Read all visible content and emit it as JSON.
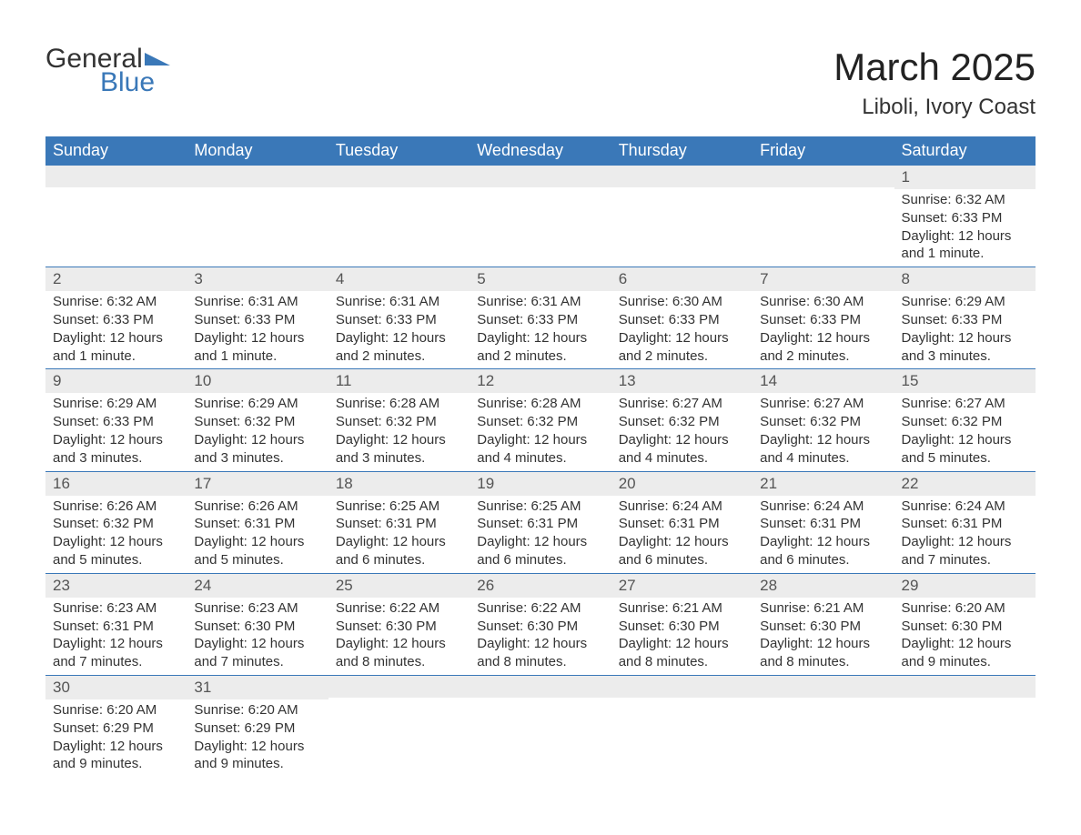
{
  "brand": {
    "word1": "General",
    "word2": "Blue",
    "accent_color": "#3a78b8",
    "text_color": "#333333"
  },
  "title": "March 2025",
  "location": "Liboli, Ivory Coast",
  "colors": {
    "header_bg": "#3a78b8",
    "header_text": "#ffffff",
    "daynum_bg": "#ececec",
    "daynum_text": "#555555",
    "body_text": "#333333",
    "cell_border": "#3a78b8",
    "page_bg": "#ffffff"
  },
  "typography": {
    "title_fontsize": 42,
    "location_fontsize": 24,
    "header_fontsize": 18,
    "daynum_fontsize": 17,
    "body_fontsize": 15,
    "logo_fontsize": 30
  },
  "weekday_headers": [
    "Sunday",
    "Monday",
    "Tuesday",
    "Wednesday",
    "Thursday",
    "Friday",
    "Saturday"
  ],
  "weeks": [
    [
      {
        "day": "",
        "sunrise": "",
        "sunset": "",
        "daylight": ""
      },
      {
        "day": "",
        "sunrise": "",
        "sunset": "",
        "daylight": ""
      },
      {
        "day": "",
        "sunrise": "",
        "sunset": "",
        "daylight": ""
      },
      {
        "day": "",
        "sunrise": "",
        "sunset": "",
        "daylight": ""
      },
      {
        "day": "",
        "sunrise": "",
        "sunset": "",
        "daylight": ""
      },
      {
        "day": "",
        "sunrise": "",
        "sunset": "",
        "daylight": ""
      },
      {
        "day": "1",
        "sunrise": "Sunrise: 6:32 AM",
        "sunset": "Sunset: 6:33 PM",
        "daylight": "Daylight: 12 hours and 1 minute."
      }
    ],
    [
      {
        "day": "2",
        "sunrise": "Sunrise: 6:32 AM",
        "sunset": "Sunset: 6:33 PM",
        "daylight": "Daylight: 12 hours and 1 minute."
      },
      {
        "day": "3",
        "sunrise": "Sunrise: 6:31 AM",
        "sunset": "Sunset: 6:33 PM",
        "daylight": "Daylight: 12 hours and 1 minute."
      },
      {
        "day": "4",
        "sunrise": "Sunrise: 6:31 AM",
        "sunset": "Sunset: 6:33 PM",
        "daylight": "Daylight: 12 hours and 2 minutes."
      },
      {
        "day": "5",
        "sunrise": "Sunrise: 6:31 AM",
        "sunset": "Sunset: 6:33 PM",
        "daylight": "Daylight: 12 hours and 2 minutes."
      },
      {
        "day": "6",
        "sunrise": "Sunrise: 6:30 AM",
        "sunset": "Sunset: 6:33 PM",
        "daylight": "Daylight: 12 hours and 2 minutes."
      },
      {
        "day": "7",
        "sunrise": "Sunrise: 6:30 AM",
        "sunset": "Sunset: 6:33 PM",
        "daylight": "Daylight: 12 hours and 2 minutes."
      },
      {
        "day": "8",
        "sunrise": "Sunrise: 6:29 AM",
        "sunset": "Sunset: 6:33 PM",
        "daylight": "Daylight: 12 hours and 3 minutes."
      }
    ],
    [
      {
        "day": "9",
        "sunrise": "Sunrise: 6:29 AM",
        "sunset": "Sunset: 6:33 PM",
        "daylight": "Daylight: 12 hours and 3 minutes."
      },
      {
        "day": "10",
        "sunrise": "Sunrise: 6:29 AM",
        "sunset": "Sunset: 6:32 PM",
        "daylight": "Daylight: 12 hours and 3 minutes."
      },
      {
        "day": "11",
        "sunrise": "Sunrise: 6:28 AM",
        "sunset": "Sunset: 6:32 PM",
        "daylight": "Daylight: 12 hours and 3 minutes."
      },
      {
        "day": "12",
        "sunrise": "Sunrise: 6:28 AM",
        "sunset": "Sunset: 6:32 PM",
        "daylight": "Daylight: 12 hours and 4 minutes."
      },
      {
        "day": "13",
        "sunrise": "Sunrise: 6:27 AM",
        "sunset": "Sunset: 6:32 PM",
        "daylight": "Daylight: 12 hours and 4 minutes."
      },
      {
        "day": "14",
        "sunrise": "Sunrise: 6:27 AM",
        "sunset": "Sunset: 6:32 PM",
        "daylight": "Daylight: 12 hours and 4 minutes."
      },
      {
        "day": "15",
        "sunrise": "Sunrise: 6:27 AM",
        "sunset": "Sunset: 6:32 PM",
        "daylight": "Daylight: 12 hours and 5 minutes."
      }
    ],
    [
      {
        "day": "16",
        "sunrise": "Sunrise: 6:26 AM",
        "sunset": "Sunset: 6:32 PM",
        "daylight": "Daylight: 12 hours and 5 minutes."
      },
      {
        "day": "17",
        "sunrise": "Sunrise: 6:26 AM",
        "sunset": "Sunset: 6:31 PM",
        "daylight": "Daylight: 12 hours and 5 minutes."
      },
      {
        "day": "18",
        "sunrise": "Sunrise: 6:25 AM",
        "sunset": "Sunset: 6:31 PM",
        "daylight": "Daylight: 12 hours and 6 minutes."
      },
      {
        "day": "19",
        "sunrise": "Sunrise: 6:25 AM",
        "sunset": "Sunset: 6:31 PM",
        "daylight": "Daylight: 12 hours and 6 minutes."
      },
      {
        "day": "20",
        "sunrise": "Sunrise: 6:24 AM",
        "sunset": "Sunset: 6:31 PM",
        "daylight": "Daylight: 12 hours and 6 minutes."
      },
      {
        "day": "21",
        "sunrise": "Sunrise: 6:24 AM",
        "sunset": "Sunset: 6:31 PM",
        "daylight": "Daylight: 12 hours and 6 minutes."
      },
      {
        "day": "22",
        "sunrise": "Sunrise: 6:24 AM",
        "sunset": "Sunset: 6:31 PM",
        "daylight": "Daylight: 12 hours and 7 minutes."
      }
    ],
    [
      {
        "day": "23",
        "sunrise": "Sunrise: 6:23 AM",
        "sunset": "Sunset: 6:31 PM",
        "daylight": "Daylight: 12 hours and 7 minutes."
      },
      {
        "day": "24",
        "sunrise": "Sunrise: 6:23 AM",
        "sunset": "Sunset: 6:30 PM",
        "daylight": "Daylight: 12 hours and 7 minutes."
      },
      {
        "day": "25",
        "sunrise": "Sunrise: 6:22 AM",
        "sunset": "Sunset: 6:30 PM",
        "daylight": "Daylight: 12 hours and 8 minutes."
      },
      {
        "day": "26",
        "sunrise": "Sunrise: 6:22 AM",
        "sunset": "Sunset: 6:30 PM",
        "daylight": "Daylight: 12 hours and 8 minutes."
      },
      {
        "day": "27",
        "sunrise": "Sunrise: 6:21 AM",
        "sunset": "Sunset: 6:30 PM",
        "daylight": "Daylight: 12 hours and 8 minutes."
      },
      {
        "day": "28",
        "sunrise": "Sunrise: 6:21 AM",
        "sunset": "Sunset: 6:30 PM",
        "daylight": "Daylight: 12 hours and 8 minutes."
      },
      {
        "day": "29",
        "sunrise": "Sunrise: 6:20 AM",
        "sunset": "Sunset: 6:30 PM",
        "daylight": "Daylight: 12 hours and 9 minutes."
      }
    ],
    [
      {
        "day": "30",
        "sunrise": "Sunrise: 6:20 AM",
        "sunset": "Sunset: 6:29 PM",
        "daylight": "Daylight: 12 hours and 9 minutes."
      },
      {
        "day": "31",
        "sunrise": "Sunrise: 6:20 AM",
        "sunset": "Sunset: 6:29 PM",
        "daylight": "Daylight: 12 hours and 9 minutes."
      },
      {
        "day": "",
        "sunrise": "",
        "sunset": "",
        "daylight": ""
      },
      {
        "day": "",
        "sunrise": "",
        "sunset": "",
        "daylight": ""
      },
      {
        "day": "",
        "sunrise": "",
        "sunset": "",
        "daylight": ""
      },
      {
        "day": "",
        "sunrise": "",
        "sunset": "",
        "daylight": ""
      },
      {
        "day": "",
        "sunrise": "",
        "sunset": "",
        "daylight": ""
      }
    ]
  ]
}
